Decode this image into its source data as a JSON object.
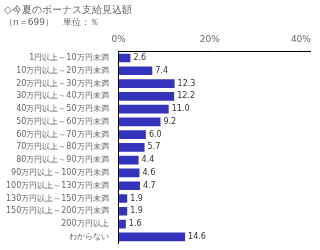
{
  "chart_data": {
    "type": "bar",
    "orientation": "horizontal",
    "title": "◇今夏のボーナス支給見込額",
    "subtitle": "（n＝699）　単位：％",
    "categories": [
      "1円以上～10万円未満",
      "10万円以上～20万円未満",
      "20万円以上～30万円未満",
      "30万円以上～40万円未満",
      "40万円以上～50万円未満",
      "50万円以上～60万円未満",
      "60万円以上～70万円未満",
      "70万円以上～80万円未満",
      "80万円以上～90万円未満",
      "90万円以上～100万円未満",
      "100万円以上～130万円未満",
      "130万円以上～150万円未満",
      "150万円以上～200万円未満",
      "200万円以上",
      "わからない"
    ],
    "values": [
      2.6,
      7.4,
      12.3,
      12.2,
      11.0,
      9.2,
      6.0,
      5.7,
      4.4,
      4.6,
      4.7,
      1.9,
      1.9,
      1.6,
      14.6
    ],
    "value_labels": [
      "2.6",
      "7.4",
      "12.3",
      "12.2",
      "11.0",
      "9.2",
      "6.0",
      "5.7",
      "4.4",
      "4.6",
      "4.7",
      "1.9",
      "1.9",
      "1.6",
      "14.6"
    ],
    "color": "#3333bb",
    "xlim": [
      0,
      42
    ],
    "xticks": [
      {
        "value": 0,
        "label": "0%"
      },
      {
        "value": 20,
        "label": "20%"
      },
      {
        "value": 40,
        "label": "40%"
      }
    ],
    "grid": false,
    "data_labels": true
  }
}
